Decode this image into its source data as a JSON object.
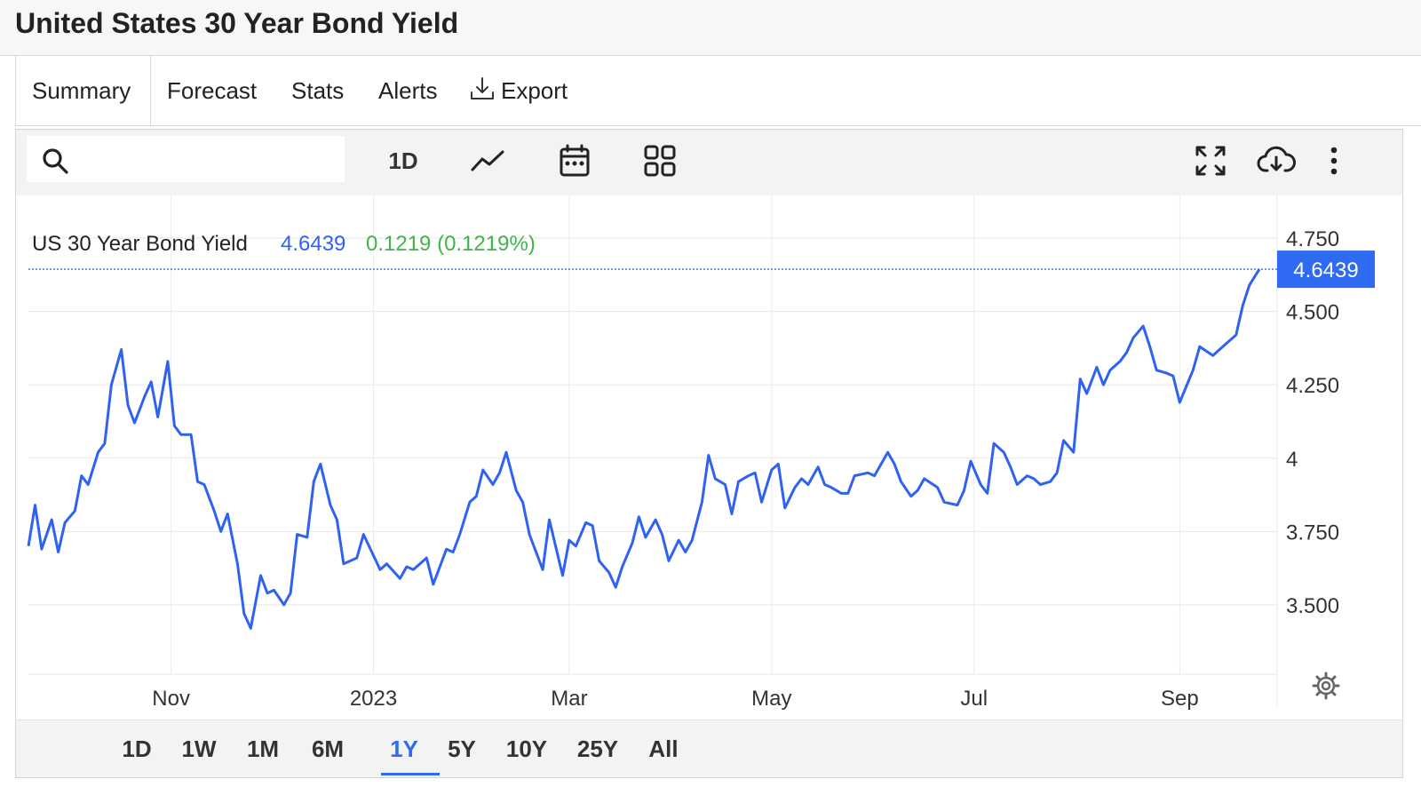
{
  "page": {
    "title": "United States 30 Year Bond Yield"
  },
  "tabs": [
    {
      "label": "Summary",
      "active": true
    },
    {
      "label": "Forecast"
    },
    {
      "label": "Stats"
    },
    {
      "label": "Alerts"
    },
    {
      "label": "Export"
    }
  ],
  "toolbar": {
    "search_value": "",
    "search_placeholder": "",
    "interval_label": "1D",
    "icons": [
      "search-icon",
      "line-chart-icon",
      "calendar-icon",
      "grid-icon",
      "fullscreen-icon",
      "cloud-download-icon",
      "more-vert-icon"
    ]
  },
  "legend": {
    "name": "US 30 Year Bond Yield",
    "value": "4.6439",
    "change": "0.1219 (0.1219%)"
  },
  "price_tag": "4.6439",
  "colors": {
    "line": "#2f62f0",
    "accent": "#2f6bf2",
    "change": "#3fb548",
    "value": "#2f62f0"
  },
  "ranges": [
    {
      "label": "1D"
    },
    {
      "label": "1W"
    },
    {
      "label": "1M"
    },
    {
      "label": "6M"
    },
    {
      "label": "1Y",
      "active": true
    },
    {
      "label": "5Y"
    },
    {
      "label": "10Y"
    },
    {
      "label": "25Y"
    },
    {
      "label": "All"
    }
  ],
  "chart_data": {
    "type": "line",
    "title": "US 30 Year Bond Yield",
    "x_start": "2022-09-19",
    "x_end": "2023-09-25",
    "ylim": [
      3.2,
      4.85
    ],
    "y_ticks": [
      "4.750",
      "4.500",
      "4.250",
      "4",
      "3.750",
      "3.500"
    ],
    "y_tick_values": [
      4.75,
      4.5,
      4.25,
      4.0,
      3.75,
      3.5
    ],
    "x_ticks": [
      {
        "label": "Nov",
        "date": "2022-11-01"
      },
      {
        "label": "2023",
        "date": "2023-01-01"
      },
      {
        "label": "Mar",
        "date": "2023-03-01"
      },
      {
        "label": "May",
        "date": "2023-05-01"
      },
      {
        "label": "Jul",
        "date": "2023-07-01"
      },
      {
        "label": "Sep",
        "date": "2023-09-01"
      }
    ],
    "last_value": 4.6439,
    "grid": true,
    "series": [
      {
        "x": [
          "2022-09-19",
          "2022-09-21",
          "2022-09-23",
          "2022-09-26",
          "2022-09-28",
          "2022-09-30",
          "2022-10-03",
          "2022-10-05",
          "2022-10-07",
          "2022-10-10",
          "2022-10-12",
          "2022-10-14",
          "2022-10-17",
          "2022-10-19",
          "2022-10-21",
          "2022-10-24",
          "2022-10-26",
          "2022-10-28",
          "2022-10-31",
          "2022-11-02",
          "2022-11-04",
          "2022-11-07",
          "2022-11-09",
          "2022-11-11",
          "2022-11-14",
          "2022-11-16",
          "2022-11-18",
          "2022-11-21",
          "2022-11-23",
          "2022-11-25",
          "2022-11-28",
          "2022-11-30",
          "2022-12-02",
          "2022-12-05",
          "2022-12-07",
          "2022-12-09",
          "2022-12-12",
          "2022-12-14",
          "2022-12-16",
          "2022-12-19",
          "2022-12-21",
          "2022-12-23",
          "2022-12-27",
          "2022-12-29",
          "2023-01-03",
          "2023-01-05",
          "2023-01-09",
          "2023-01-11",
          "2023-01-13",
          "2023-01-17",
          "2023-01-19",
          "2023-01-23",
          "2023-01-25",
          "2023-01-27",
          "2023-01-30",
          "2023-02-01",
          "2023-02-03",
          "2023-02-06",
          "2023-02-08",
          "2023-02-10",
          "2023-02-13",
          "2023-02-15",
          "2023-02-17",
          "2023-02-21",
          "2023-02-23",
          "2023-02-27",
          "2023-03-01",
          "2023-03-03",
          "2023-03-06",
          "2023-03-08",
          "2023-03-10",
          "2023-03-13",
          "2023-03-15",
          "2023-03-17",
          "2023-03-20",
          "2023-03-22",
          "2023-03-24",
          "2023-03-27",
          "2023-03-29",
          "2023-03-31",
          "2023-04-03",
          "2023-04-05",
          "2023-04-07",
          "2023-04-10",
          "2023-04-12",
          "2023-04-14",
          "2023-04-17",
          "2023-04-19",
          "2023-04-21",
          "2023-04-24",
          "2023-04-26",
          "2023-04-28",
          "2023-05-01",
          "2023-05-03",
          "2023-05-05",
          "2023-05-08",
          "2023-05-10",
          "2023-05-12",
          "2023-05-15",
          "2023-05-17",
          "2023-05-19",
          "2023-05-22",
          "2023-05-24",
          "2023-05-26",
          "2023-05-30",
          "2023-06-01",
          "2023-06-05",
          "2023-06-07",
          "2023-06-09",
          "2023-06-12",
          "2023-06-14",
          "2023-06-16",
          "2023-06-20",
          "2023-06-22",
          "2023-06-26",
          "2023-06-28",
          "2023-06-30",
          "2023-07-03",
          "2023-07-05",
          "2023-07-07",
          "2023-07-10",
          "2023-07-12",
          "2023-07-14",
          "2023-07-17",
          "2023-07-19",
          "2023-07-21",
          "2023-07-24",
          "2023-07-26",
          "2023-07-28",
          "2023-07-31",
          "2023-08-02",
          "2023-08-04",
          "2023-08-07",
          "2023-08-09",
          "2023-08-11",
          "2023-08-14",
          "2023-08-16",
          "2023-08-18",
          "2023-08-21",
          "2023-08-23",
          "2023-08-25",
          "2023-08-28",
          "2023-08-30",
          "2023-09-01",
          "2023-09-05",
          "2023-09-07",
          "2023-09-11",
          "2023-09-13",
          "2023-09-15",
          "2023-09-18",
          "2023-09-20",
          "2023-09-22",
          "2023-09-25"
        ],
        "values": [
          3.7,
          3.84,
          3.69,
          3.79,
          3.68,
          3.78,
          3.82,
          3.94,
          3.91,
          4.02,
          4.05,
          4.25,
          4.37,
          4.18,
          4.12,
          4.21,
          4.26,
          4.14,
          4.33,
          4.11,
          4.08,
          4.08,
          3.92,
          3.91,
          3.82,
          3.75,
          3.81,
          3.64,
          3.47,
          3.42,
          3.6,
          3.54,
          3.55,
          3.5,
          3.54,
          3.74,
          3.73,
          3.92,
          3.98,
          3.84,
          3.79,
          3.64,
          3.66,
          3.74,
          3.62,
          3.64,
          3.59,
          3.63,
          3.62,
          3.66,
          3.57,
          3.69,
          3.68,
          3.74,
          3.85,
          3.87,
          3.96,
          3.91,
          3.95,
          4.02,
          3.89,
          3.85,
          3.74,
          3.62,
          3.79,
          3.6,
          3.72,
          3.7,
          3.78,
          3.77,
          3.65,
          3.61,
          3.56,
          3.63,
          3.71,
          3.8,
          3.73,
          3.79,
          3.74,
          3.65,
          3.72,
          3.68,
          3.72,
          3.85,
          4.01,
          3.93,
          3.91,
          3.81,
          3.92,
          3.94,
          3.95,
          3.85,
          3.96,
          3.98,
          3.83,
          3.9,
          3.93,
          3.91,
          3.97,
          3.91,
          3.9,
          3.88,
          3.88,
          3.94,
          3.95,
          3.94,
          4.02,
          3.98,
          3.92,
          3.87,
          3.89,
          3.93,
          3.9,
          3.85,
          3.84,
          3.89,
          3.99,
          3.91,
          3.88,
          4.05,
          4.02,
          3.97,
          3.91,
          3.94,
          3.93,
          3.91,
          3.92,
          3.95,
          4.06,
          4.02,
          4.27,
          4.22,
          4.31,
          4.25,
          4.3,
          4.33,
          4.36,
          4.41,
          4.45,
          4.38,
          4.3,
          4.29,
          4.28,
          4.19,
          4.3,
          4.38,
          4.35,
          4.37,
          4.39,
          4.42,
          4.52,
          4.59,
          4.6439
        ]
      }
    ]
  }
}
